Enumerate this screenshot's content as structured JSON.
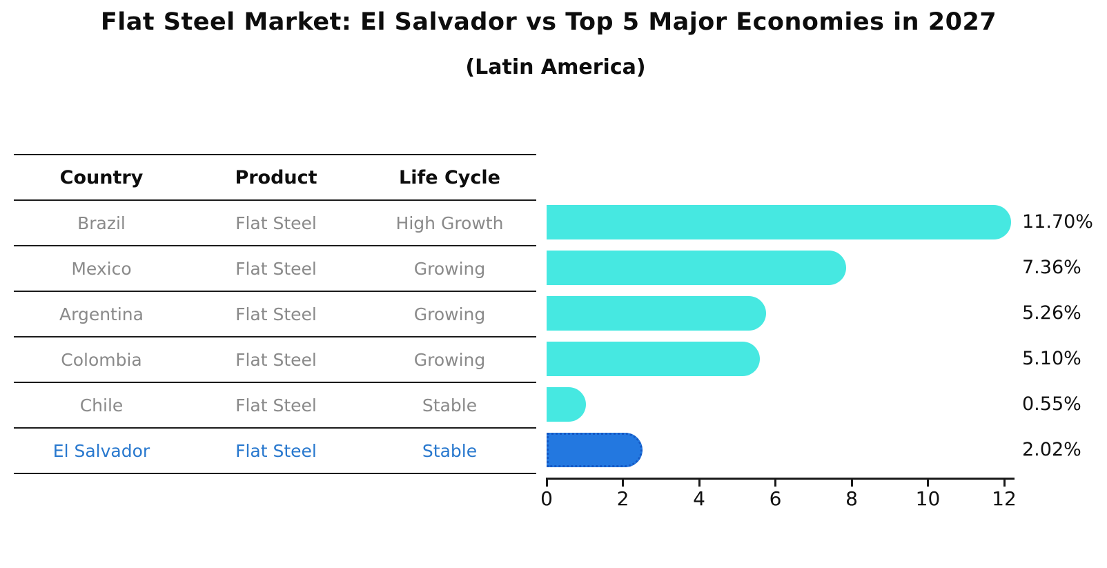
{
  "title": "Flat Steel Market: El Salvador vs Top 5 Major Economies in 2027",
  "subtitle": "(Latin America)",
  "table": {
    "headers": [
      "Country",
      "Product",
      "Life Cycle"
    ],
    "rows": [
      {
        "country": "Brazil",
        "product": "Flat Steel",
        "life_cycle": "High Growth",
        "highlighted": false
      },
      {
        "country": "Mexico",
        "product": "Flat Steel",
        "life_cycle": "Growing",
        "highlighted": false
      },
      {
        "country": "Argentina",
        "product": "Flat Steel",
        "life_cycle": "Growing",
        "highlighted": false
      },
      {
        "country": "Colombia",
        "product": "Flat Steel",
        "life_cycle": "Growing",
        "highlighted": false
      },
      {
        "country": "Chile",
        "product": "Flat Steel",
        "life_cycle": "Stable",
        "highlighted": false
      },
      {
        "country": "El Salvador",
        "product": "Flat Steel",
        "life_cycle": "Stable",
        "highlighted": true
      }
    ]
  },
  "chart_data": {
    "type": "bar",
    "orientation": "horizontal",
    "categories": [
      "Brazil",
      "Mexico",
      "Argentina",
      "Colombia",
      "Chile",
      "El Salvador"
    ],
    "values": [
      11.7,
      7.36,
      5.26,
      5.1,
      0.55,
      2.02
    ],
    "labels": [
      "11.70%",
      "7.36%",
      "5.26%",
      "5.10%",
      "0.55%",
      "2.02%"
    ],
    "title": "Flat Steel Market: El Salvador vs Top 5 Major Economies in 2027",
    "subtitle": "(Latin America)",
    "xlabel": "",
    "ylabel": "",
    "xlim": [
      0,
      12
    ],
    "xticks": [
      0,
      2,
      4,
      6,
      8,
      10,
      12
    ],
    "xtick_labels": [
      "0",
      "2",
      "4",
      "6",
      "8",
      "10",
      "12"
    ],
    "grid": false,
    "legend": false,
    "bar_color": "#46e8e1",
    "highlight_index": 5,
    "highlight_fill": "#2378e0",
    "highlight_border_color": "#1458c4",
    "highlight_border_style": "dotted",
    "highlight_text_color": "#2878ce",
    "row_text_color": "#8a8a8a",
    "axis_color": "#1a1a1a"
  }
}
